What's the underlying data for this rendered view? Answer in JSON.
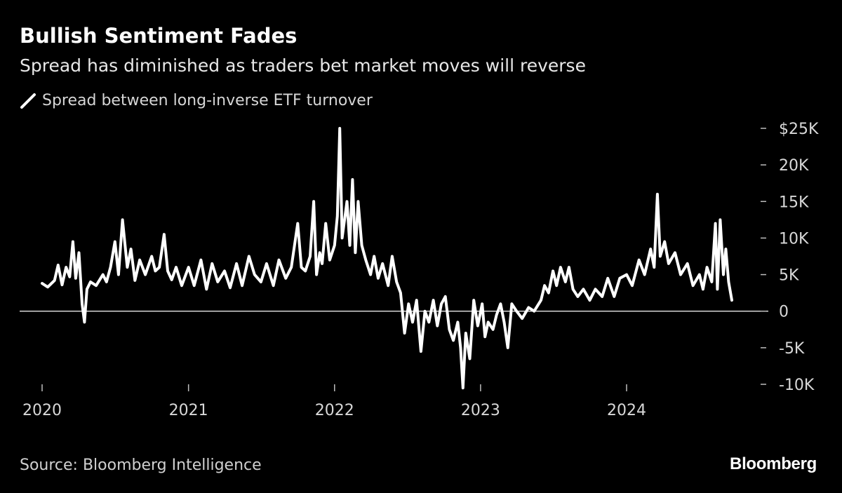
{
  "header": {
    "title": "Bullish Sentiment Fades",
    "subtitle": "Spread has diminished as traders bet market moves will reverse"
  },
  "legend": {
    "label": "Spread between long-inverse ETF turnover"
  },
  "footer": {
    "source": "Source: Bloomberg Intelligence",
    "brand": "Bloomberg"
  },
  "colors": {
    "background": "#000000",
    "line": "#ffffff",
    "axis_text": "#d8d8d8"
  },
  "chart_data": {
    "type": "line",
    "title": "Bullish Sentiment Fades",
    "subtitle": "Spread has diminished as traders bet market moves will reverse",
    "xlabel": "",
    "ylabel": "",
    "x_ticks": [
      "2020",
      "2021",
      "2022",
      "2023",
      "2024"
    ],
    "y_ticks": [
      {
        "value": 25000,
        "label": "$25K"
      },
      {
        "value": 20000,
        "label": "20K"
      },
      {
        "value": 15000,
        "label": "15K"
      },
      {
        "value": 10000,
        "label": "10K"
      },
      {
        "value": 5000,
        "label": "5K"
      },
      {
        "value": 0,
        "label": "0"
      },
      {
        "value": -5000,
        "label": "-5K"
      },
      {
        "value": -10000,
        "label": "-10K"
      }
    ],
    "ylim": [
      -10000,
      25000
    ],
    "xlim": [
      "2020-01-01",
      "2024-12-31"
    ],
    "grid": false,
    "zero_line": true,
    "legend_position": "top-left",
    "series": [
      {
        "name": "Spread between long-inverse ETF turnover",
        "points": [
          [
            "2020-01-01",
            3800
          ],
          [
            "2020-01-15",
            3300
          ],
          [
            "2020-02-01",
            4200
          ],
          [
            "2020-02-10",
            6300
          ],
          [
            "2020-02-20",
            3600
          ],
          [
            "2020-03-01",
            6000
          ],
          [
            "2020-03-10",
            4700
          ],
          [
            "2020-03-18",
            9500
          ],
          [
            "2020-03-25",
            4500
          ],
          [
            "2020-04-02",
            8000
          ],
          [
            "2020-04-10",
            1000
          ],
          [
            "2020-04-16",
            -1500
          ],
          [
            "2020-04-22",
            3000
          ],
          [
            "2020-05-01",
            4000
          ],
          [
            "2020-05-15",
            3500
          ],
          [
            "2020-06-01",
            5000
          ],
          [
            "2020-06-10",
            4000
          ],
          [
            "2020-06-20",
            6000
          ],
          [
            "2020-07-01",
            9500
          ],
          [
            "2020-07-10",
            5000
          ],
          [
            "2020-07-20",
            12500
          ],
          [
            "2020-08-01",
            6000
          ],
          [
            "2020-08-10",
            8500
          ],
          [
            "2020-08-20",
            4200
          ],
          [
            "2020-09-01",
            7000
          ],
          [
            "2020-09-15",
            5000
          ],
          [
            "2020-10-01",
            7500
          ],
          [
            "2020-10-10",
            5500
          ],
          [
            "2020-10-20",
            6000
          ],
          [
            "2020-11-01",
            10500
          ],
          [
            "2020-11-10",
            5500
          ],
          [
            "2020-11-20",
            4300
          ],
          [
            "2020-12-01",
            6000
          ],
          [
            "2020-12-15",
            3500
          ],
          [
            "2021-01-01",
            6000
          ],
          [
            "2021-01-15",
            3500
          ],
          [
            "2021-02-01",
            7000
          ],
          [
            "2021-02-15",
            3000
          ],
          [
            "2021-03-01",
            6500
          ],
          [
            "2021-03-15",
            4000
          ],
          [
            "2021-04-01",
            5500
          ],
          [
            "2021-04-15",
            3200
          ],
          [
            "2021-05-01",
            6500
          ],
          [
            "2021-05-15",
            3500
          ],
          [
            "2021-06-01",
            7500
          ],
          [
            "2021-06-15",
            5000
          ],
          [
            "2021-07-01",
            4000
          ],
          [
            "2021-07-15",
            6500
          ],
          [
            "2021-08-01",
            3500
          ],
          [
            "2021-08-15",
            7000
          ],
          [
            "2021-09-01",
            4500
          ],
          [
            "2021-09-15",
            6000
          ],
          [
            "2021-10-01",
            12000
          ],
          [
            "2021-10-10",
            6000
          ],
          [
            "2021-10-20",
            5500
          ],
          [
            "2021-11-01",
            7500
          ],
          [
            "2021-11-10",
            15000
          ],
          [
            "2021-11-17",
            5000
          ],
          [
            "2021-11-25",
            8000
          ],
          [
            "2021-12-01",
            6500
          ],
          [
            "2021-12-10",
            12000
          ],
          [
            "2021-12-20",
            7000
          ],
          [
            "2022-01-01",
            9000
          ],
          [
            "2022-01-08",
            13000
          ],
          [
            "2022-01-14",
            25000
          ],
          [
            "2022-01-20",
            10000
          ],
          [
            "2022-02-01",
            15000
          ],
          [
            "2022-02-08",
            9000
          ],
          [
            "2022-02-15",
            18000
          ],
          [
            "2022-02-22",
            8000
          ],
          [
            "2022-03-01",
            15000
          ],
          [
            "2022-03-10",
            9000
          ],
          [
            "2022-03-20",
            7000
          ],
          [
            "2022-04-01",
            5000
          ],
          [
            "2022-04-10",
            7500
          ],
          [
            "2022-04-20",
            4500
          ],
          [
            "2022-05-01",
            6500
          ],
          [
            "2022-05-15",
            3500
          ],
          [
            "2022-05-25",
            7500
          ],
          [
            "2022-06-05",
            4000
          ],
          [
            "2022-06-15",
            2500
          ],
          [
            "2022-06-25",
            -3000
          ],
          [
            "2022-07-05",
            1000
          ],
          [
            "2022-07-15",
            -1500
          ],
          [
            "2022-07-25",
            1500
          ],
          [
            "2022-08-05",
            -5500
          ],
          [
            "2022-08-15",
            0
          ],
          [
            "2022-08-25",
            -1500
          ],
          [
            "2022-09-05",
            1500
          ],
          [
            "2022-09-15",
            -2000
          ],
          [
            "2022-09-25",
            1000
          ],
          [
            "2022-10-05",
            2000
          ],
          [
            "2022-10-15",
            -2500
          ],
          [
            "2022-10-25",
            -4000
          ],
          [
            "2022-11-05",
            -1500
          ],
          [
            "2022-11-12",
            -5000
          ],
          [
            "2022-11-18",
            -10500
          ],
          [
            "2022-11-25",
            -3000
          ],
          [
            "2022-12-05",
            -6500
          ],
          [
            "2022-12-15",
            1500
          ],
          [
            "2022-12-25",
            -2000
          ],
          [
            "2023-01-05",
            1000
          ],
          [
            "2023-01-12",
            -3500
          ],
          [
            "2023-01-20",
            -1500
          ],
          [
            "2023-02-01",
            -2500
          ],
          [
            "2023-02-10",
            -500
          ],
          [
            "2023-02-20",
            1000
          ],
          [
            "2023-03-01",
            -1500
          ],
          [
            "2023-03-10",
            -5000
          ],
          [
            "2023-03-20",
            1000
          ],
          [
            "2023-04-01",
            0
          ],
          [
            "2023-04-15",
            -1000
          ],
          [
            "2023-05-01",
            500
          ],
          [
            "2023-05-15",
            0
          ],
          [
            "2023-06-01",
            1500
          ],
          [
            "2023-06-10",
            3500
          ],
          [
            "2023-06-20",
            2500
          ],
          [
            "2023-07-01",
            5500
          ],
          [
            "2023-07-10",
            3500
          ],
          [
            "2023-07-20",
            6000
          ],
          [
            "2023-08-01",
            4000
          ],
          [
            "2023-08-10",
            6000
          ],
          [
            "2023-08-20",
            3000
          ],
          [
            "2023-09-01",
            2000
          ],
          [
            "2023-09-15",
            3000
          ],
          [
            "2023-10-01",
            1500
          ],
          [
            "2023-10-15",
            3000
          ],
          [
            "2023-11-01",
            2000
          ],
          [
            "2023-11-15",
            4500
          ],
          [
            "2023-12-01",
            2000
          ],
          [
            "2023-12-15",
            4500
          ],
          [
            "2024-01-01",
            5000
          ],
          [
            "2024-01-15",
            3500
          ],
          [
            "2024-02-01",
            7000
          ],
          [
            "2024-02-15",
            5000
          ],
          [
            "2024-03-01",
            8500
          ],
          [
            "2024-03-10",
            6000
          ],
          [
            "2024-03-18",
            16000
          ],
          [
            "2024-03-25",
            7500
          ],
          [
            "2024-04-05",
            9500
          ],
          [
            "2024-04-15",
            6500
          ],
          [
            "2024-05-01",
            8000
          ],
          [
            "2024-05-15",
            5000
          ],
          [
            "2024-06-01",
            6500
          ],
          [
            "2024-06-15",
            3500
          ],
          [
            "2024-07-01",
            5000
          ],
          [
            "2024-07-10",
            3000
          ],
          [
            "2024-07-20",
            6000
          ],
          [
            "2024-08-01",
            4000
          ],
          [
            "2024-08-10",
            12000
          ],
          [
            "2024-08-15",
            3000
          ],
          [
            "2024-08-22",
            12500
          ],
          [
            "2024-08-30",
            5000
          ],
          [
            "2024-09-05",
            8500
          ],
          [
            "2024-09-12",
            4000
          ],
          [
            "2024-09-20",
            1500
          ]
        ]
      }
    ]
  }
}
